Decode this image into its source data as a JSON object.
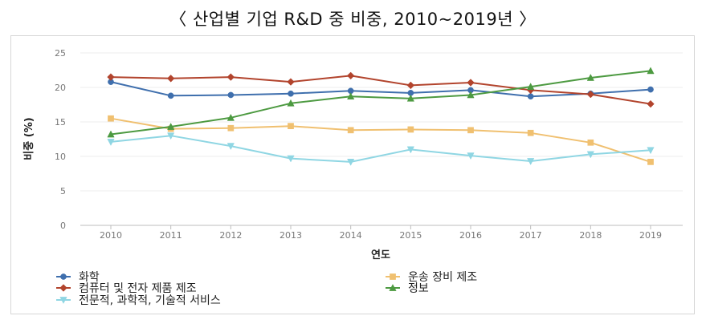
{
  "title": "〈 산업별 기업 R&D 중 비중, 2010~2019년 〉",
  "chart_data": {
    "type": "line",
    "xlabel": "연도",
    "ylabel": "비중 (%)",
    "x": [
      "2010",
      "2011",
      "2012",
      "2013",
      "2014",
      "2015",
      "2016",
      "2017",
      "2018",
      "2019"
    ],
    "ylim": [
      0,
      25
    ],
    "yticks": [
      "0",
      "5",
      "10",
      "15",
      "20",
      "25"
    ],
    "grid": true,
    "series": [
      {
        "name": "화학",
        "color": "#3f6fad",
        "marker": "circle",
        "values": [
          20.8,
          18.8,
          18.9,
          19.1,
          19.5,
          19.2,
          19.6,
          18.7,
          19.1,
          19.7
        ]
      },
      {
        "name": "컴퓨터 및 전자 제품 제조",
        "color": "#b2442d",
        "marker": "diamond",
        "values": [
          21.5,
          21.3,
          21.5,
          20.8,
          21.7,
          20.3,
          20.7,
          19.6,
          19.0,
          17.6
        ]
      },
      {
        "name": "운송 장비 제조",
        "color": "#f0c070",
        "marker": "square",
        "values": [
          15.5,
          14.0,
          14.1,
          14.4,
          13.8,
          13.9,
          13.8,
          13.4,
          12.0,
          9.2
        ]
      },
      {
        "name": "정보",
        "color": "#4d9a41",
        "marker": "triangle-up",
        "values": [
          13.2,
          14.3,
          15.6,
          17.7,
          18.7,
          18.4,
          18.9,
          20.1,
          21.4,
          22.4
        ]
      },
      {
        "name": "전문적, 과학적, 기술적 서비스",
        "color": "#8fd6e3",
        "marker": "triangle-down",
        "values": [
          12.1,
          13.0,
          11.5,
          9.7,
          9.2,
          11.0,
          10.1,
          9.3,
          10.3,
          10.9
        ]
      }
    ]
  }
}
